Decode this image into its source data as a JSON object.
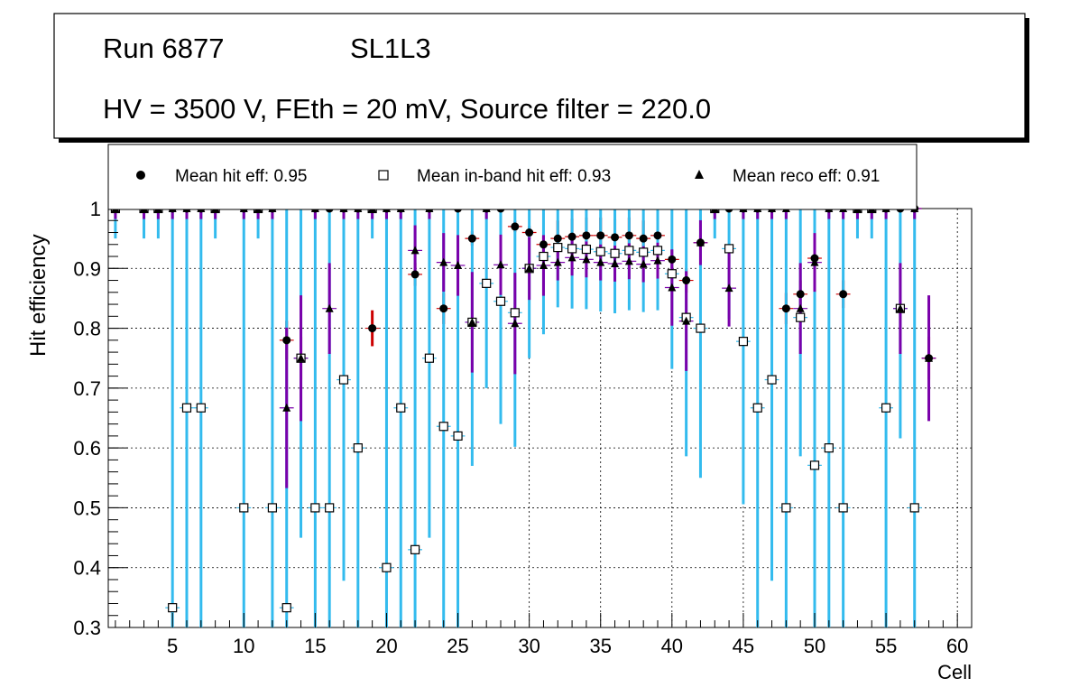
{
  "title_box": {
    "run": "Run 6877",
    "layer": "SL1L3",
    "conditions": "HV = 3500 V, FEth = 20 mV, Source filter = 220.0"
  },
  "legend": {
    "hit": "Mean hit  eff: 0.95",
    "inband": "Mean in-band hit eff: 0.93",
    "reco": "Mean reco eff: 0.91"
  },
  "colors": {
    "hit_err": "#cc0000",
    "inband_err": "#33bbee",
    "reco_err": "#7a00aa"
  },
  "chart_data": {
    "type": "scatter",
    "xlabel": "Cell",
    "ylabel": "Hit efficiency",
    "xlim": [
      0.5,
      61
    ],
    "ylim": [
      0.3,
      1.0
    ],
    "xticks": [
      5,
      10,
      15,
      20,
      25,
      30,
      35,
      40,
      45,
      50,
      55,
      60
    ],
    "yticks": [
      0.3,
      0.4,
      0.5,
      0.6,
      0.7,
      0.8,
      0.9,
      1.0
    ],
    "ytick_labels": [
      "0.3",
      "0.4",
      "0.5",
      "0.6",
      "0.7",
      "0.8",
      "0.9",
      "1"
    ],
    "grid": true,
    "series": [
      {
        "name": "hit",
        "marker": "circle",
        "points": [
          [
            1,
            1.0
          ],
          [
            3,
            1.0
          ],
          [
            4,
            1.0
          ],
          [
            5,
            1.0
          ],
          [
            6,
            1.0
          ],
          [
            7,
            1.0
          ],
          [
            8,
            1.0
          ],
          [
            10,
            1.0
          ],
          [
            11,
            1.0
          ],
          [
            12,
            1.0
          ],
          [
            13,
            0.78
          ],
          [
            14,
            0.75
          ],
          [
            15,
            1.0
          ],
          [
            16,
            1.0
          ],
          [
            17,
            1.0
          ],
          [
            18,
            1.0
          ],
          [
            19,
            0.8
          ],
          [
            20,
            1.0
          ],
          [
            21,
            1.0
          ],
          [
            22,
            0.89
          ],
          [
            23,
            1.0
          ],
          [
            24,
            0.833
          ],
          [
            25,
            1.0
          ],
          [
            26,
            0.95
          ],
          [
            27,
            1.0
          ],
          [
            28,
            1.0
          ],
          [
            29,
            0.97
          ],
          [
            30,
            0.96
          ],
          [
            31,
            0.94
          ],
          [
            32,
            0.95
          ],
          [
            33,
            0.953
          ],
          [
            34,
            0.955
          ],
          [
            35,
            0.955
          ],
          [
            36,
            0.952
          ],
          [
            37,
            0.955
          ],
          [
            38,
            0.95
          ],
          [
            39,
            0.955
          ],
          [
            40,
            0.915
          ],
          [
            41,
            0.88
          ],
          [
            42,
            0.943
          ],
          [
            43,
            1.0
          ],
          [
            44,
            1.0
          ],
          [
            45,
            1.0
          ],
          [
            46,
            1.0
          ],
          [
            47,
            1.0
          ],
          [
            48,
            0.833
          ],
          [
            49,
            0.857
          ],
          [
            50,
            0.917
          ],
          [
            51,
            1.0
          ],
          [
            52,
            0.857
          ],
          [
            53,
            1.0
          ],
          [
            54,
            1.0
          ],
          [
            55,
            1.0
          ],
          [
            56,
            1.0
          ],
          [
            57,
            1.0
          ],
          [
            58,
            0.75
          ]
        ]
      },
      {
        "name": "inband",
        "marker": "open-square",
        "points": [
          [
            1,
            1.0
          ],
          [
            3,
            1.0
          ],
          [
            4,
            1.0
          ],
          [
            5,
            0.333
          ],
          [
            6,
            0.667
          ],
          [
            7,
            0.667
          ],
          [
            8,
            1.0
          ],
          [
            10,
            0.5
          ],
          [
            11,
            1.0
          ],
          [
            12,
            0.5
          ],
          [
            13,
            0.333
          ],
          [
            14,
            0.75
          ],
          [
            15,
            0.5
          ],
          [
            16,
            0.5
          ],
          [
            17,
            0.714
          ],
          [
            18,
            0.6
          ],
          [
            19,
            1.0
          ],
          [
            20,
            0.4
          ],
          [
            21,
            0.667
          ],
          [
            22,
            0.43
          ],
          [
            23,
            0.75
          ],
          [
            24,
            0.636
          ],
          [
            25,
            0.62
          ],
          [
            26,
            0.81
          ],
          [
            27,
            0.875
          ],
          [
            28,
            0.845
          ],
          [
            29,
            0.826
          ],
          [
            30,
            0.9
          ],
          [
            31,
            0.92
          ],
          [
            32,
            0.935
          ],
          [
            33,
            0.933
          ],
          [
            34,
            0.932
          ],
          [
            35,
            0.928
          ],
          [
            36,
            0.925
          ],
          [
            37,
            0.93
          ],
          [
            38,
            0.927
          ],
          [
            39,
            0.93
          ],
          [
            40,
            0.891
          ],
          [
            41,
            0.818
          ],
          [
            42,
            0.8
          ],
          [
            43,
            1.0
          ],
          [
            44,
            0.933
          ],
          [
            45,
            0.778
          ],
          [
            46,
            0.667
          ],
          [
            47,
            0.714
          ],
          [
            48,
            0.5
          ],
          [
            49,
            0.818
          ],
          [
            50,
            0.571
          ],
          [
            51,
            0.6
          ],
          [
            52,
            0.5
          ],
          [
            53,
            1.0
          ],
          [
            54,
            1.0
          ],
          [
            55,
            0.667
          ],
          [
            56,
            0.833
          ],
          [
            57,
            0.5
          ]
        ]
      },
      {
        "name": "reco",
        "marker": "triangle",
        "points": [
          [
            1,
            1.0
          ],
          [
            3,
            1.0
          ],
          [
            4,
            1.0
          ],
          [
            5,
            1.0
          ],
          [
            6,
            1.0
          ],
          [
            7,
            1.0
          ],
          [
            8,
            1.0
          ],
          [
            10,
            1.0
          ],
          [
            11,
            1.0
          ],
          [
            12,
            1.0
          ],
          [
            13,
            0.667
          ],
          [
            14,
            0.75
          ],
          [
            15,
            1.0
          ],
          [
            16,
            0.833
          ],
          [
            17,
            1.0
          ],
          [
            18,
            1.0
          ],
          [
            19,
            1.0
          ],
          [
            20,
            1.0
          ],
          [
            21,
            1.0
          ],
          [
            22,
            0.93
          ],
          [
            23,
            1.0
          ],
          [
            24,
            0.91
          ],
          [
            25,
            0.905
          ],
          [
            26,
            0.81
          ],
          [
            27,
            1.0
          ],
          [
            28,
            0.906
          ],
          [
            29,
            0.808
          ],
          [
            30,
            0.9
          ],
          [
            31,
            0.905
          ],
          [
            32,
            0.91
          ],
          [
            33,
            0.918
          ],
          [
            34,
            0.915
          ],
          [
            35,
            0.91
          ],
          [
            36,
            0.908
          ],
          [
            37,
            0.912
          ],
          [
            38,
            0.907
          ],
          [
            39,
            0.913
          ],
          [
            40,
            0.868
          ],
          [
            41,
            0.812
          ],
          [
            42,
            0.943
          ],
          [
            43,
            1.0
          ],
          [
            44,
            0.867
          ],
          [
            45,
            1.0
          ],
          [
            46,
            1.0
          ],
          [
            47,
            1.0
          ],
          [
            48,
            1.0
          ],
          [
            49,
            0.833
          ],
          [
            50,
            0.91
          ],
          [
            51,
            1.0
          ],
          [
            52,
            1.0
          ],
          [
            53,
            1.0
          ],
          [
            54,
            1.0
          ],
          [
            55,
            1.0
          ],
          [
            56,
            0.833
          ],
          [
            57,
            1.0
          ],
          [
            58,
            0.75
          ]
        ]
      }
    ]
  }
}
